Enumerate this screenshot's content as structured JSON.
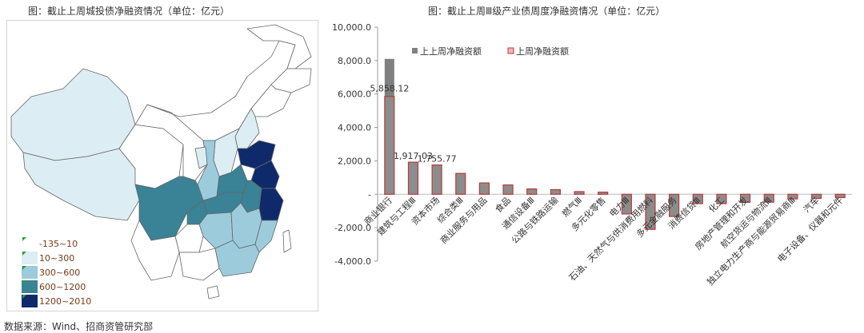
{
  "left_title": "图：截止上周城投债净融资情况（单位：亿元）",
  "right_title": "图：截止上周Ⅲ级产业债周度净融资情况（单位：亿元）",
  "source": "数据来源：Wind、招商资管研究部",
  "map_legend": [
    {
      "label": "-135~10",
      "color": "#ffffff"
    },
    {
      "label": "10~300",
      "color": "#dcedf3"
    },
    {
      "label": "300~600",
      "color": "#9ccbdc"
    },
    {
      "label": "600~1200",
      "color": "#3a8296"
    },
    {
      "label": "1200~2010",
      "color": "#0e2a6b"
    }
  ],
  "chart_data": {
    "type": "bar",
    "title": "图：截止上周Ⅲ级产业债周度净融资情况（单位：亿元）",
    "ylim": [
      -4000,
      10000
    ],
    "yticks": [
      -4000,
      -2000,
      0,
      2000,
      4000,
      6000,
      8000,
      10000
    ],
    "ytick_labels": [
      "-4,000.0",
      "-2,000.0",
      "-",
      "2,000.0",
      "4,000.0",
      "6,000.0",
      "8,000.0",
      "10,000.0"
    ],
    "legend_position": "top",
    "categories": [
      "商业银行",
      "建筑与工程Ⅲ",
      "资本市场",
      "综合类Ⅲ",
      "商业服务与用品",
      "食品",
      "通信设备Ⅲ",
      "公路与铁路运输",
      "燃气Ⅲ",
      "多元化零售",
      "电力Ⅲ",
      "石油、天然气与供消费用燃料",
      "多元金融服务",
      "消费信贷Ⅲ",
      "化工",
      "房地产管理和开发",
      "航空货运与物流Ⅲ",
      "独立电力生产商与能源贸易商Ⅲ",
      "汽车",
      "电子设备、仪器和元件"
    ],
    "series": [
      {
        "name": "上上周净融资额",
        "color": "#808080",
        "values": [
          8100,
          1950,
          1780,
          1270,
          700,
          570,
          330,
          300,
          170,
          140,
          -1200,
          -2000,
          -1250,
          -500,
          -520,
          -430,
          -420,
          -260,
          -230,
          -180
        ]
      },
      {
        "name": "上周净融资额",
        "color": "#b73c3c",
        "values": [
          5858.12,
          1917.03,
          1755.77,
          1250,
          680,
          560,
          320,
          280,
          160,
          130,
          -1180,
          -2100,
          -1330,
          -560,
          -560,
          -480,
          -470,
          -280,
          -250,
          -200
        ]
      }
    ],
    "data_labels": [
      {
        "category": "商业银行",
        "text": "5,858.12"
      },
      {
        "category": "建筑与工程Ⅲ",
        "text": "1,917.03"
      },
      {
        "category": "资本市场",
        "text": "1,755.77"
      }
    ]
  }
}
